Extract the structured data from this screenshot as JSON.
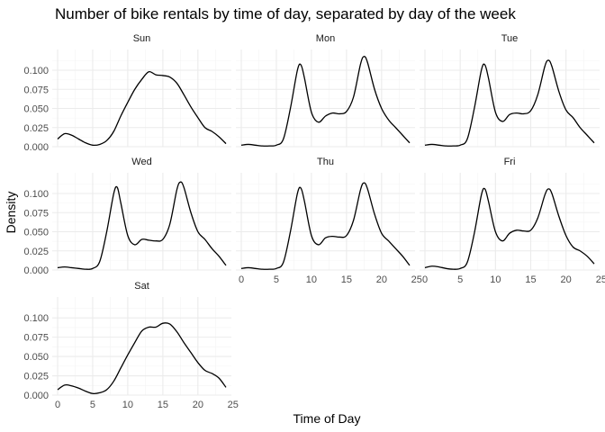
{
  "chart_data": {
    "type": "line",
    "title": "Number of bike rentals by time of day, separated by day of the week",
    "xlabel": "Time of Day",
    "ylabel": "Density",
    "xlim": [
      0,
      24
    ],
    "ylim": [
      0,
      0.12
    ],
    "x_ticks": [
      "0",
      "5",
      "10",
      "15",
      "20",
      "25"
    ],
    "y_ticks": [
      "0.000",
      "0.025",
      "0.050",
      "0.075",
      "0.100"
    ],
    "grid": true,
    "facets": [
      {
        "name": "Sun",
        "x": [
          0,
          1,
          2,
          3,
          4,
          5,
          6,
          7,
          8,
          9,
          10,
          11,
          12,
          13,
          14,
          15,
          16,
          17,
          18,
          19,
          20,
          21,
          22,
          23,
          24
        ],
        "y": [
          0.01,
          0.017,
          0.015,
          0.01,
          0.005,
          0.002,
          0.003,
          0.008,
          0.02,
          0.04,
          0.058,
          0.075,
          0.088,
          0.098,
          0.094,
          0.093,
          0.091,
          0.083,
          0.068,
          0.052,
          0.038,
          0.025,
          0.02,
          0.013,
          0.004
        ]
      },
      {
        "name": "Mon",
        "x": [
          0,
          1,
          2,
          3,
          4,
          5,
          6,
          7,
          8,
          8.5,
          9,
          10,
          11,
          12,
          13,
          14,
          15,
          16,
          17,
          17.5,
          18,
          19,
          20,
          21,
          22,
          23,
          24
        ],
        "y": [
          0.002,
          0.003,
          0.002,
          0.001,
          0.001,
          0.002,
          0.01,
          0.05,
          0.1,
          0.107,
          0.09,
          0.045,
          0.032,
          0.04,
          0.044,
          0.043,
          0.046,
          0.065,
          0.108,
          0.118,
          0.11,
          0.075,
          0.05,
          0.035,
          0.025,
          0.015,
          0.005
        ]
      },
      {
        "name": "Tue",
        "x": [
          0,
          1,
          2,
          3,
          4,
          5,
          6,
          7,
          8,
          8.5,
          9,
          10,
          11,
          12,
          13,
          14,
          15,
          16,
          17,
          17.5,
          18,
          19,
          20,
          21,
          22,
          23,
          24
        ],
        "y": [
          0.002,
          0.003,
          0.002,
          0.001,
          0.001,
          0.002,
          0.01,
          0.05,
          0.1,
          0.107,
          0.09,
          0.045,
          0.033,
          0.042,
          0.044,
          0.043,
          0.047,
          0.068,
          0.105,
          0.113,
          0.105,
          0.072,
          0.048,
          0.038,
          0.025,
          0.015,
          0.005
        ]
      },
      {
        "name": "Wed",
        "x": [
          0,
          1,
          2,
          3,
          4,
          5,
          6,
          7,
          8,
          8.5,
          9,
          10,
          11,
          12,
          13,
          14,
          15,
          16,
          17,
          17.5,
          18,
          19,
          20,
          21,
          22,
          23,
          24
        ],
        "y": [
          0.003,
          0.004,
          0.003,
          0.002,
          0.001,
          0.002,
          0.011,
          0.05,
          0.1,
          0.108,
          0.088,
          0.045,
          0.033,
          0.04,
          0.039,
          0.038,
          0.04,
          0.06,
          0.105,
          0.115,
          0.108,
          0.075,
          0.05,
          0.04,
          0.028,
          0.018,
          0.006
        ]
      },
      {
        "name": "Thu",
        "x": [
          0,
          1,
          2,
          3,
          4,
          5,
          6,
          7,
          8,
          8.5,
          9,
          10,
          11,
          12,
          13,
          14,
          15,
          16,
          17,
          17.5,
          18,
          19,
          20,
          21,
          22,
          23,
          24
        ],
        "y": [
          0.002,
          0.003,
          0.002,
          0.001,
          0.001,
          0.002,
          0.01,
          0.05,
          0.1,
          0.107,
          0.09,
          0.045,
          0.033,
          0.042,
          0.044,
          0.043,
          0.045,
          0.065,
          0.105,
          0.114,
          0.106,
          0.073,
          0.048,
          0.038,
          0.028,
          0.018,
          0.006
        ]
      },
      {
        "name": "Fri",
        "x": [
          0,
          1,
          2,
          3,
          4,
          5,
          6,
          7,
          8,
          8.5,
          9,
          10,
          11,
          12,
          13,
          14,
          15,
          16,
          17,
          17.5,
          18,
          19,
          20,
          21,
          22,
          23,
          24
        ],
        "y": [
          0.003,
          0.005,
          0.004,
          0.002,
          0.001,
          0.002,
          0.01,
          0.048,
          0.098,
          0.106,
          0.09,
          0.05,
          0.038,
          0.048,
          0.052,
          0.051,
          0.052,
          0.068,
          0.098,
          0.106,
          0.1,
          0.07,
          0.045,
          0.03,
          0.025,
          0.018,
          0.008
        ]
      },
      {
        "name": "Sat",
        "x": [
          0,
          1,
          2,
          3,
          4,
          5,
          6,
          7,
          8,
          9,
          10,
          11,
          12,
          13,
          14,
          15,
          16,
          17,
          18,
          19,
          20,
          21,
          22,
          23,
          24
        ],
        "y": [
          0.007,
          0.013,
          0.012,
          0.009,
          0.005,
          0.002,
          0.003,
          0.007,
          0.018,
          0.035,
          0.052,
          0.068,
          0.083,
          0.088,
          0.088,
          0.093,
          0.092,
          0.082,
          0.068,
          0.055,
          0.042,
          0.032,
          0.028,
          0.022,
          0.01
        ]
      }
    ]
  }
}
